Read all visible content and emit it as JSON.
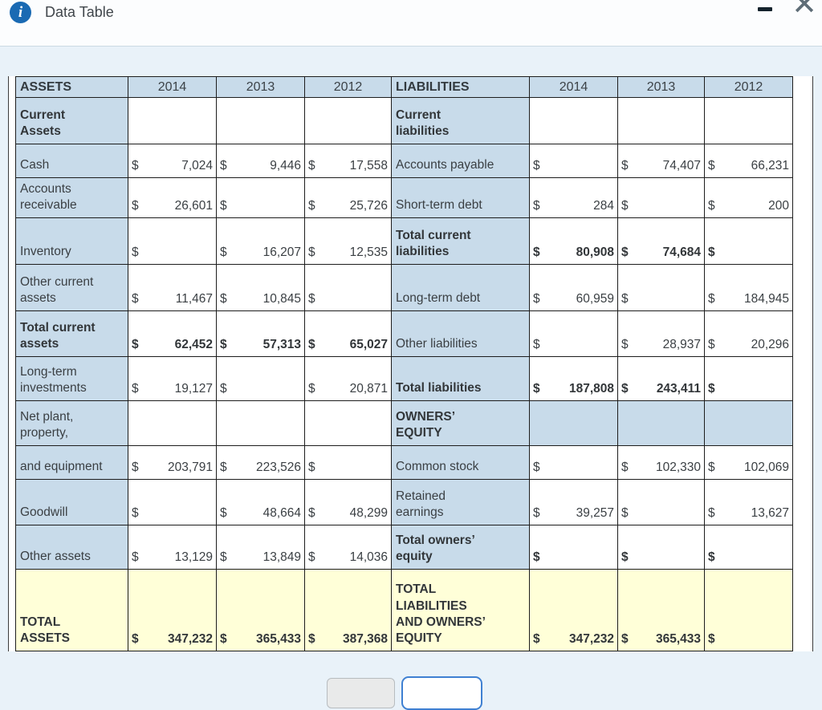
{
  "window": {
    "title": "Data Table",
    "info_glyph": "i",
    "close_glyph": "✕"
  },
  "table": {
    "header": [
      "ASSETS",
      "2014",
      "2013",
      "2012",
      "LIABILITIES",
      "2014",
      "2013",
      "2012"
    ],
    "rows": [
      [
        {
          "type": "label",
          "text": "Current\nAssets",
          "bold": true,
          "bg": "blue"
        },
        {
          "type": "empty",
          "bg": "white"
        },
        {
          "type": "empty",
          "bg": "white"
        },
        {
          "type": "empty",
          "bg": "white"
        },
        {
          "type": "label",
          "text": "Current\nliabilities",
          "bold": true,
          "bg": "blue"
        },
        {
          "type": "empty",
          "bg": "white"
        },
        {
          "type": "empty",
          "bg": "white"
        },
        {
          "type": "empty",
          "bg": "white"
        }
      ],
      [
        {
          "type": "label",
          "text": "Cash",
          "bg": "blue"
        },
        {
          "type": "money",
          "amount": "7,024",
          "bg": "white"
        },
        {
          "type": "money",
          "amount": "9,446",
          "bg": "white"
        },
        {
          "type": "money",
          "amount": "17,558",
          "bg": "white"
        },
        {
          "type": "label",
          "text": "Accounts payable",
          "bg": "blue"
        },
        {
          "type": "money",
          "amount": "",
          "bg": "white"
        },
        {
          "type": "money",
          "amount": "74,407",
          "bg": "white"
        },
        {
          "type": "money",
          "amount": "66,231",
          "bg": "white"
        }
      ],
      [
        {
          "type": "label",
          "text": "Accounts\nreceivable",
          "bg": "blue"
        },
        {
          "type": "money",
          "amount": "26,601",
          "bg": "white"
        },
        {
          "type": "money",
          "amount": "",
          "bg": "white"
        },
        {
          "type": "money",
          "amount": "25,726",
          "bg": "white"
        },
        {
          "type": "label",
          "text": "Short-term debt",
          "bg": "blue"
        },
        {
          "type": "money",
          "amount": "284",
          "bg": "white"
        },
        {
          "type": "money",
          "amount": "",
          "bg": "white"
        },
        {
          "type": "money",
          "amount": "200",
          "bg": "white"
        }
      ],
      [
        {
          "type": "label",
          "text": "Inventory",
          "bg": "blue"
        },
        {
          "type": "money",
          "amount": "",
          "bg": "white"
        },
        {
          "type": "money",
          "amount": "16,207",
          "bg": "white"
        },
        {
          "type": "money",
          "amount": "12,535",
          "bg": "white"
        },
        {
          "type": "label",
          "text": "Total current\nliabilities",
          "bold": true,
          "bg": "blue"
        },
        {
          "type": "money",
          "amount": "80,908",
          "bold": true,
          "bg": "white"
        },
        {
          "type": "money",
          "amount": "74,684",
          "bold": true,
          "bg": "white"
        },
        {
          "type": "money",
          "amount": "",
          "bold": true,
          "bg": "white"
        }
      ],
      [
        {
          "type": "label",
          "text": "Other current\nassets",
          "bg": "blue"
        },
        {
          "type": "money",
          "amount": "11,467",
          "bg": "white"
        },
        {
          "type": "money",
          "amount": "10,845",
          "bg": "white"
        },
        {
          "type": "money",
          "amount": "",
          "bg": "white"
        },
        {
          "type": "label",
          "text": "Long-term debt",
          "bg": "blue"
        },
        {
          "type": "money",
          "amount": "60,959",
          "bg": "white"
        },
        {
          "type": "money",
          "amount": "",
          "bg": "white"
        },
        {
          "type": "money",
          "amount": "184,945",
          "bg": "white"
        }
      ],
      [
        {
          "type": "label",
          "text": "Total current\nassets",
          "bold": true,
          "bg": "blue"
        },
        {
          "type": "money",
          "amount": "62,452",
          "bold": true,
          "bg": "white"
        },
        {
          "type": "money",
          "amount": "57,313",
          "bold": true,
          "bg": "white"
        },
        {
          "type": "money",
          "amount": "65,027",
          "bold": true,
          "bg": "white"
        },
        {
          "type": "label",
          "text": "Other liabilities",
          "bg": "blue"
        },
        {
          "type": "money",
          "amount": "",
          "bg": "white"
        },
        {
          "type": "money",
          "amount": "28,937",
          "bg": "white"
        },
        {
          "type": "money",
          "amount": "20,296",
          "bg": "white"
        }
      ],
      [
        {
          "type": "label",
          "text": "Long-term\ninvestments",
          "bg": "blue"
        },
        {
          "type": "money",
          "amount": "19,127",
          "bg": "white"
        },
        {
          "type": "money",
          "amount": "",
          "bg": "white"
        },
        {
          "type": "money",
          "amount": "20,871",
          "bg": "white"
        },
        {
          "type": "label",
          "text": "Total liabilities",
          "bold": true,
          "bg": "blue"
        },
        {
          "type": "money",
          "amount": "187,808",
          "bold": true,
          "bg": "white"
        },
        {
          "type": "money",
          "amount": "243,411",
          "bold": true,
          "bg": "white"
        },
        {
          "type": "money",
          "amount": "",
          "bold": true,
          "bg": "white"
        }
      ],
      [
        {
          "type": "label",
          "text": "Net plant,\nproperty,",
          "bg": "blue"
        },
        {
          "type": "empty",
          "bg": "white"
        },
        {
          "type": "empty",
          "bg": "white"
        },
        {
          "type": "empty",
          "bg": "white"
        },
        {
          "type": "label",
          "text": "OWNERS’\nEQUITY",
          "bold": true,
          "bg": "blue"
        },
        {
          "type": "empty",
          "bg": "blue"
        },
        {
          "type": "empty",
          "bg": "blue"
        },
        {
          "type": "empty",
          "bg": "blue"
        }
      ],
      [
        {
          "type": "label",
          "text": "and equipment",
          "bg": "blue"
        },
        {
          "type": "money",
          "amount": "203,791",
          "bg": "white"
        },
        {
          "type": "money",
          "amount": "223,526",
          "bg": "white"
        },
        {
          "type": "money",
          "amount": "",
          "bg": "white"
        },
        {
          "type": "label",
          "text": "Common stock",
          "bg": "blue"
        },
        {
          "type": "money",
          "amount": "",
          "bg": "white"
        },
        {
          "type": "money",
          "amount": "102,330",
          "bg": "white"
        },
        {
          "type": "money",
          "amount": "102,069",
          "bg": "white"
        }
      ],
      [
        {
          "type": "label",
          "text": "Goodwill",
          "bg": "blue"
        },
        {
          "type": "money",
          "amount": "",
          "bg": "white"
        },
        {
          "type": "money",
          "amount": "48,664",
          "bg": "white"
        },
        {
          "type": "money",
          "amount": "48,299",
          "bg": "white"
        },
        {
          "type": "label",
          "text": "Retained\nearnings",
          "bg": "blue"
        },
        {
          "type": "money",
          "amount": "39,257",
          "bg": "white"
        },
        {
          "type": "money",
          "amount": "",
          "bg": "white"
        },
        {
          "type": "money",
          "amount": "13,627",
          "bg": "white"
        }
      ],
      [
        {
          "type": "label",
          "text": "Other assets",
          "bg": "blue"
        },
        {
          "type": "money",
          "amount": "13,129",
          "bg": "white"
        },
        {
          "type": "money",
          "amount": "13,849",
          "bg": "white"
        },
        {
          "type": "money",
          "amount": "14,036",
          "bg": "white"
        },
        {
          "type": "label",
          "text": "Total owners’\nequity",
          "bold": true,
          "bg": "blue"
        },
        {
          "type": "money",
          "amount": "",
          "bold": true,
          "bg": "white"
        },
        {
          "type": "money",
          "amount": "",
          "bold": true,
          "bg": "white"
        },
        {
          "type": "money",
          "amount": "",
          "bold": true,
          "bg": "white"
        }
      ],
      [
        {
          "type": "label",
          "text": "TOTAL\nASSETS",
          "bold": true,
          "bg": "yellow"
        },
        {
          "type": "money",
          "amount": "347,232",
          "bold": true,
          "bg": "yellow"
        },
        {
          "type": "money",
          "amount": "365,433",
          "bold": true,
          "bg": "yellow"
        },
        {
          "type": "money",
          "amount": "387,368",
          "bold": true,
          "bg": "yellow"
        },
        {
          "type": "label",
          "text": "TOTAL\nLIABILITIES\nAND OWNERS’\nEQUITY",
          "bold": true,
          "bg": "yellow"
        },
        {
          "type": "money",
          "amount": "347,232",
          "bold": true,
          "bg": "yellow"
        },
        {
          "type": "money",
          "amount": "365,433",
          "bold": true,
          "bg": "yellow"
        },
        {
          "type": "money",
          "amount": "",
          "bold": true,
          "bg": "yellow"
        }
      ]
    ]
  }
}
